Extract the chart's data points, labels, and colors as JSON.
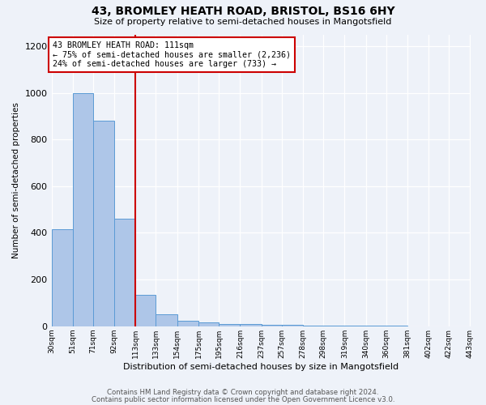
{
  "title1": "43, BROMLEY HEATH ROAD, BRISTOL, BS16 6HY",
  "title2": "Size of property relative to semi-detached houses in Mangotsfield",
  "xlabel": "Distribution of semi-detached houses by size in Mangotsfield",
  "ylabel": "Number of semi-detached properties",
  "annotation_line1": "43 BROMLEY HEATH ROAD: 111sqm",
  "annotation_line2": "← 75% of semi-detached houses are smaller (2,236)",
  "annotation_line3": "24% of semi-detached houses are larger (733) →",
  "bin_edges": [
    30,
    51,
    71,
    92,
    113,
    133,
    154,
    175,
    195,
    216,
    237,
    257,
    278,
    298,
    319,
    340,
    360,
    381,
    402,
    422,
    443
  ],
  "bin_labels": [
    "30sqm",
    "51sqm",
    "71sqm",
    "92sqm",
    "113sqm",
    "133sqm",
    "154sqm",
    "175sqm",
    "195sqm",
    "216sqm",
    "237sqm",
    "257sqm",
    "278sqm",
    "298sqm",
    "319sqm",
    "340sqm",
    "360sqm",
    "381sqm",
    "402sqm",
    "422sqm",
    "443sqm"
  ],
  "counts": [
    415,
    1000,
    880,
    460,
    135,
    50,
    25,
    15,
    10,
    8,
    6,
    5,
    4,
    3,
    3,
    2,
    2,
    1,
    1,
    1
  ],
  "bar_color": "#aec6e8",
  "bar_edge_color": "#5b9bd5",
  "vline_color": "#cc0000",
  "vline_x": 113,
  "ylim": [
    0,
    1250
  ],
  "yticks": [
    0,
    200,
    400,
    600,
    800,
    1000,
    1200
  ],
  "footnote1": "Contains HM Land Registry data © Crown copyright and database right 2024.",
  "footnote2": "Contains public sector information licensed under the Open Government Licence v3.0.",
  "background_color": "#eef2f9"
}
